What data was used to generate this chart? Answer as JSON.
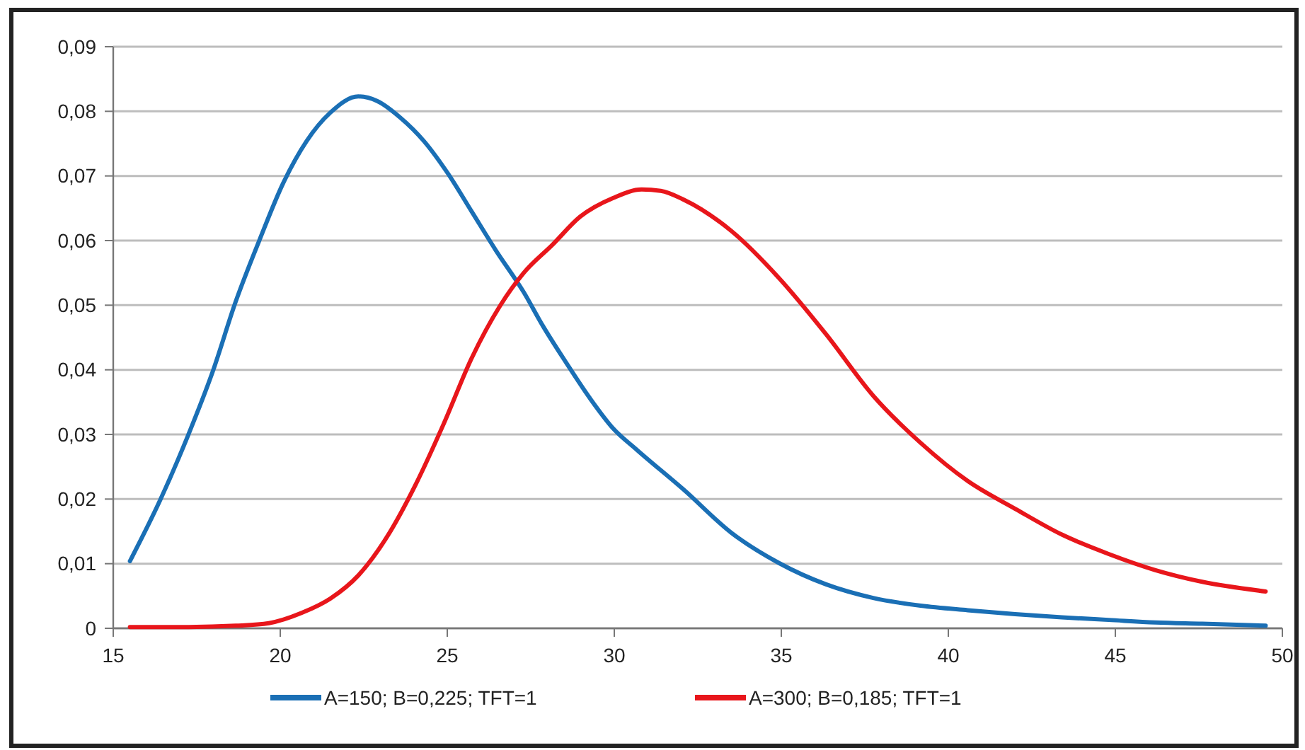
{
  "chart_data": {
    "type": "line",
    "xlim": [
      15,
      50
    ],
    "xticks": [
      15,
      20,
      25,
      30,
      35,
      40,
      45,
      50
    ],
    "ylim": [
      0,
      0.09
    ],
    "yticks": [
      {
        "value": 0,
        "label": "0"
      },
      {
        "value": 0.01,
        "label": "0,01"
      },
      {
        "value": 0.02,
        "label": "0,02"
      },
      {
        "value": 0.03,
        "label": "0,03"
      },
      {
        "value": 0.04,
        "label": "0,04"
      },
      {
        "value": 0.05,
        "label": "0,05"
      },
      {
        "value": 0.06,
        "label": "0,06"
      },
      {
        "value": 0.07,
        "label": "0,07"
      },
      {
        "value": 0.08,
        "label": "0,08"
      },
      {
        "value": 0.09,
        "label": "0,09"
      }
    ],
    "grid": "y",
    "legend": "bottom",
    "marker": "none",
    "line_style": "solid",
    "series": [
      {
        "name": "A=150; B=0,225; TFT=1",
        "color": "#1a6fb5",
        "x": [
          15.5,
          16.41,
          17.26,
          17.97,
          18.67,
          19.38,
          20.08,
          20.79,
          21.5,
          22.34,
          22.9,
          23.6,
          24.3,
          25.03,
          25.73,
          26.44,
          27.29,
          27.85,
          28.56,
          29.27,
          29.97,
          30.68,
          32.09,
          33.5,
          34.93,
          36.34,
          37.75,
          39.17,
          40.58,
          42.0,
          43.4,
          44.8,
          46.2,
          47.6,
          49.5
        ],
        "values": [
          0.0104,
          0.0199,
          0.0301,
          0.0396,
          0.0506,
          0.0601,
          0.0688,
          0.0754,
          0.0798,
          0.0823,
          0.0816,
          0.079,
          0.0754,
          0.0703,
          0.0645,
          0.0586,
          0.052,
          0.0469,
          0.0411,
          0.0356,
          0.0309,
          0.0276,
          0.0214,
          0.0148,
          0.0101,
          0.0068,
          0.0047,
          0.0035,
          0.0028,
          0.0022,
          0.0017,
          0.0013,
          0.0009,
          0.0007,
          0.0004
        ]
      },
      {
        "name": "A=300; B=0,185; TFT=1",
        "color": "#e8161b",
        "x": [
          15.5,
          17.26,
          18.67,
          19.66,
          20.65,
          21.5,
          22.34,
          23.19,
          24.04,
          24.89,
          25.73,
          26.58,
          27.29,
          28.14,
          28.98,
          29.97,
          30.82,
          31.39,
          32.09,
          33.5,
          34.93,
          36.34,
          37.75,
          39.17,
          40.58,
          42.0,
          43.4,
          44.8,
          46.2,
          47.6,
          49.5
        ],
        "values": [
          0.0002,
          0.0002,
          0.0004,
          0.0008,
          0.0024,
          0.0046,
          0.0082,
          0.0141,
          0.0221,
          0.0316,
          0.0418,
          0.0499,
          0.055,
          0.0593,
          0.0637,
          0.0666,
          0.0679,
          0.0677,
          0.0663,
          0.0615,
          0.0542,
          0.0455,
          0.036,
          0.0287,
          0.0228,
          0.0185,
          0.0145,
          0.0115,
          0.009,
          0.0072,
          0.0057
        ]
      }
    ]
  }
}
